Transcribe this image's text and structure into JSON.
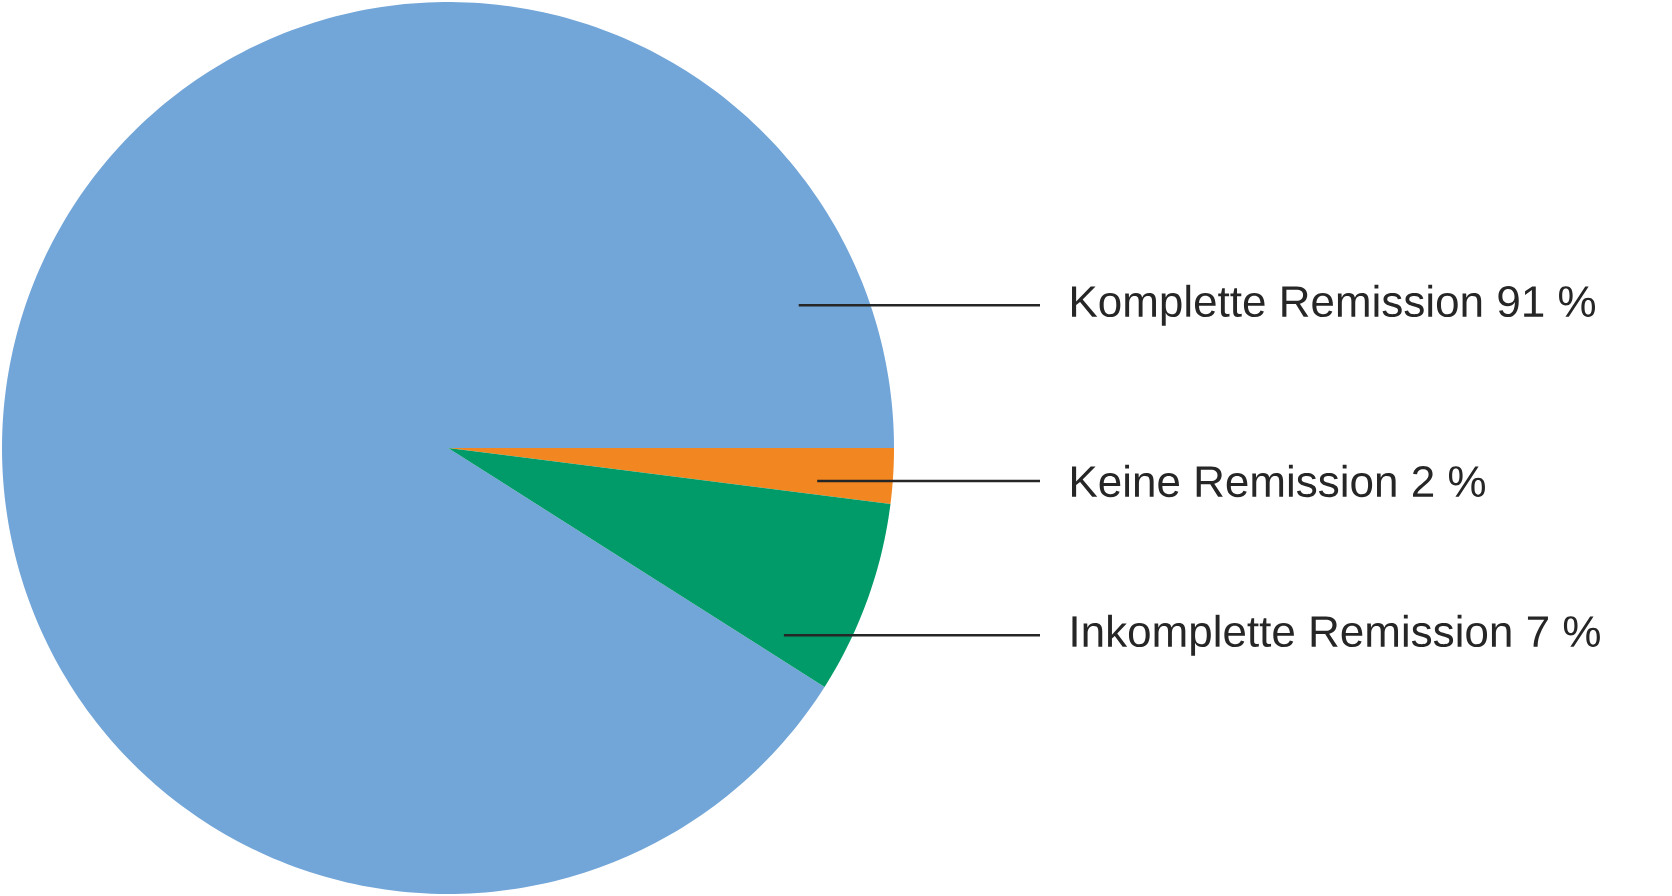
{
  "chart_data": {
    "type": "pie",
    "categories": [
      "Komplette Remission",
      "Keine Remission",
      "Inkomplette Remission"
    ],
    "values": [
      91,
      2,
      7
    ],
    "value_labels": [
      "91 %",
      "2 %",
      "7 %"
    ],
    "colors": [
      "#73a6d8",
      "#f28620",
      "#009b68"
    ]
  }
}
